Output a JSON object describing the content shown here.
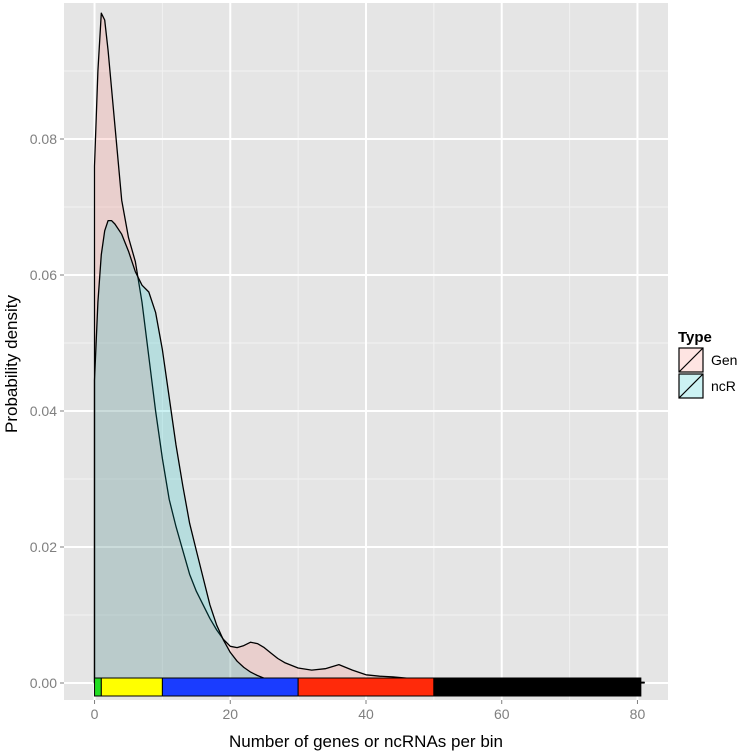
{
  "chart_data": {
    "type": "area",
    "xlabel": "Number of genes or ncRNAs per bin",
    "ylabel": "Probability density",
    "xlim": [
      -4.5,
      84.5
    ],
    "ylim": [
      -0.0025,
      0.1
    ],
    "x_ticks": [
      0,
      20,
      40,
      60,
      80
    ],
    "x_tick_labels": [
      "0",
      "20",
      "40",
      "60",
      "80"
    ],
    "y_ticks": [
      0.0,
      0.02,
      0.04,
      0.06,
      0.08
    ],
    "y_tick_labels": [
      "0.00",
      "0.02",
      "0.04",
      "0.06",
      "0.08"
    ],
    "grid": true,
    "legend": {
      "title": "Type",
      "position": "right"
    },
    "series": [
      {
        "name": "Gene",
        "fill": "#f8766d",
        "x": [
          0,
          0.5,
          1,
          1.5,
          2,
          3,
          4,
          5,
          6,
          7,
          8,
          9,
          10,
          11,
          12,
          13,
          14,
          15,
          16,
          17,
          18,
          19,
          20,
          21,
          22,
          23,
          24,
          25,
          26,
          27,
          28,
          30,
          32,
          34,
          36,
          38,
          40,
          42,
          44,
          46,
          48,
          50,
          52,
          54,
          56,
          58,
          60,
          62,
          64,
          66,
          68,
          70,
          72,
          74,
          76,
          78,
          80,
          81
        ],
        "y": [
          0.076,
          0.09,
          0.0985,
          0.0975,
          0.093,
          0.082,
          0.071,
          0.0655,
          0.062,
          0.056,
          0.048,
          0.04,
          0.033,
          0.027,
          0.023,
          0.0195,
          0.016,
          0.0135,
          0.0115,
          0.0095,
          0.0078,
          0.0064,
          0.0054,
          0.0052,
          0.0055,
          0.006,
          0.0058,
          0.0052,
          0.0044,
          0.0036,
          0.003,
          0.0022,
          0.0019,
          0.0021,
          0.0027,
          0.0019,
          0.0012,
          0.001,
          0.0009,
          0.0007,
          0.0005,
          0.0004,
          0.0004,
          0.0003,
          0.0003,
          0.0002,
          0.0003,
          0.0002,
          0.0002,
          0.0001,
          0.0001,
          0.0001,
          0.0001,
          0.0001,
          0.0002,
          0.0001,
          0.0001,
          0.0001
        ]
      },
      {
        "name": "ncRNA",
        "fill": "#00bfc4",
        "x": [
          0,
          0.5,
          1,
          1.5,
          2,
          2.5,
          3,
          4,
          5,
          6,
          7,
          8,
          9,
          10,
          11,
          12,
          13,
          14,
          15,
          16,
          17,
          18,
          19,
          20,
          21,
          22,
          23,
          24,
          25,
          26,
          28,
          30,
          32,
          34,
          36,
          38,
          40,
          44,
          48,
          52,
          56,
          60
        ],
        "y": [
          0.0445,
          0.056,
          0.063,
          0.0665,
          0.068,
          0.068,
          0.0675,
          0.066,
          0.0635,
          0.0605,
          0.0585,
          0.0575,
          0.0545,
          0.049,
          0.042,
          0.035,
          0.029,
          0.0235,
          0.0195,
          0.0155,
          0.0115,
          0.0085,
          0.0063,
          0.0045,
          0.0032,
          0.0023,
          0.0016,
          0.0011,
          0.0007,
          0.0005,
          0.0003,
          0.0002,
          0.0001,
          0.0001,
          0.0001,
          0.0,
          0.0,
          0.0,
          0.0,
          0.0,
          0.0,
          0.0
        ]
      }
    ],
    "bin_bar": [
      {
        "from": 0,
        "to": 1,
        "color": "#22dd22"
      },
      {
        "from": 1,
        "to": 10,
        "color": "#ffff00"
      },
      {
        "from": 10,
        "to": 30,
        "color": "#1a3cff"
      },
      {
        "from": 30,
        "to": 50,
        "color": "#ff2a0a"
      },
      {
        "from": 50,
        "to": 80.5,
        "color": "#000000"
      }
    ]
  }
}
